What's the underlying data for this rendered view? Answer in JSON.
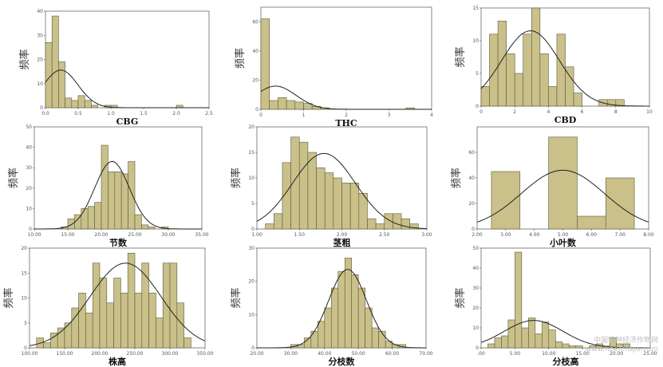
{
  "watermark": {
    "line1": "中国特种经济作物网",
    "line2": "www.fibercrops.com"
  },
  "chart_data": [
    {
      "type": "bar",
      "xlabel": "CBG",
      "ylabel": "频率",
      "xlim": [
        0,
        2.5
      ],
      "ylim": [
        0,
        40
      ],
      "xticks": [
        "0.0",
        "0.5",
        "1.0",
        "1.5",
        "2.0",
        "2.5"
      ],
      "xtick_values": [
        0,
        0.5,
        1,
        1.5,
        2,
        2.5
      ],
      "yticks": [
        0,
        10,
        20,
        30,
        40
      ],
      "bin_width": 0.1,
      "bin_starts": [
        0,
        0.1,
        0.2,
        0.3,
        0.4,
        0.5,
        0.6,
        0.7,
        0.8,
        0.9,
        1.0,
        1.1,
        1.2,
        1.3,
        1.4,
        1.5,
        1.6,
        1.7,
        1.8,
        1.9,
        2.0
      ],
      "values": [
        27,
        38,
        19,
        4,
        3,
        5,
        3,
        1,
        0,
        1,
        1,
        0,
        0,
        0,
        0,
        0,
        0,
        0,
        0,
        0,
        1
      ],
      "normal_curve": true
    },
    {
      "type": "bar",
      "xlabel": "THC",
      "ylabel": "频率",
      "xlim": [
        0,
        4
      ],
      "ylim": [
        0,
        70
      ],
      "xticks": [
        "0",
        "1",
        "2",
        "3",
        "4"
      ],
      "xtick_values": [
        0,
        1,
        2,
        3,
        4
      ],
      "yticks": [
        0,
        20,
        40,
        60
      ],
      "bin_width": 0.2,
      "bin_starts": [
        0,
        0.2,
        0.4,
        0.6,
        0.8,
        1.0,
        1.2,
        1.4,
        1.6,
        1.8,
        2.0,
        2.2,
        2.4,
        2.6,
        2.8,
        3.0,
        3.2,
        3.4
      ],
      "values": [
        62,
        6,
        8,
        6,
        5,
        4,
        2,
        1,
        0,
        0,
        0,
        0,
        0,
        0,
        0,
        0,
        0,
        1
      ],
      "normal_curve": true
    },
    {
      "type": "bar",
      "xlabel": "CBD",
      "ylabel": "频率",
      "xlim": [
        0,
        10
      ],
      "ylim": [
        0,
        15
      ],
      "xticks": [
        "0",
        "2",
        "4",
        "6",
        "8",
        "10"
      ],
      "xtick_values": [
        0,
        2,
        4,
        6,
        8,
        10
      ],
      "yticks": [
        0,
        5,
        10,
        15
      ],
      "bin_width": 0.5,
      "bin_starts": [
        0,
        0.5,
        1.0,
        1.5,
        2.0,
        2.5,
        3.0,
        3.5,
        4.0,
        4.5,
        5.0,
        5.5,
        6.0,
        6.5,
        7.0,
        7.5,
        8.0
      ],
      "values": [
        3,
        11,
        13,
        8,
        5,
        11,
        15,
        8,
        3,
        11,
        6,
        2,
        0,
        0,
        1,
        1,
        1
      ],
      "normal_curve": true
    },
    {
      "type": "bar",
      "xlabel": "节数",
      "ylabel": "频率",
      "xlim": [
        10,
        35
      ],
      "ylim": [
        0,
        50
      ],
      "xticks": [
        "10.00",
        "15.00",
        "20.00",
        "25.00",
        "30.00",
        "35.00"
      ],
      "xtick_values": [
        10,
        15,
        20,
        25,
        30,
        35
      ],
      "yticks": [
        0,
        10,
        20,
        30,
        40,
        50
      ],
      "bin_width": 1,
      "bin_starts": [
        14,
        15,
        16,
        17,
        18,
        19,
        20,
        21,
        22,
        23,
        24,
        25,
        26,
        27,
        28,
        29
      ],
      "values": [
        1,
        5,
        7,
        10,
        11,
        13,
        41,
        28,
        28,
        27,
        33,
        7,
        2,
        1,
        0,
        1
      ],
      "normal_curve": true
    },
    {
      "type": "bar",
      "xlabel": "茎粗",
      "ylabel": "频率",
      "xlim": [
        1.0,
        3.0
      ],
      "ylim": [
        0,
        20
      ],
      "xticks": [
        "1.00",
        "1.50",
        "2.00",
        "2.50",
        "3.00"
      ],
      "xtick_values": [
        1,
        1.5,
        2,
        2.5,
        3
      ],
      "yticks": [
        0,
        5,
        10,
        15,
        20
      ],
      "bin_width": 0.1,
      "bin_starts": [
        1.1,
        1.2,
        1.3,
        1.4,
        1.5,
        1.6,
        1.7,
        1.8,
        1.9,
        2.0,
        2.1,
        2.2,
        2.3,
        2.4,
        2.5,
        2.6,
        2.7,
        2.8
      ],
      "values": [
        1,
        3,
        13,
        18,
        17,
        15,
        12,
        11,
        10,
        9,
        9,
        7,
        2,
        1,
        3,
        3,
        2,
        1
      ],
      "normal_curve": true
    },
    {
      "type": "bar",
      "xlabel": "小叶数",
      "ylabel": "频率",
      "xlim": [
        2,
        8
      ],
      "ylim": [
        0,
        80
      ],
      "xticks": [
        "2.00",
        "3.00",
        "4.00",
        "5.00",
        "6.00",
        "7.00",
        "8.00"
      ],
      "xtick_values": [
        2,
        3,
        4,
        5,
        6,
        7,
        8
      ],
      "yticks": [
        0,
        20,
        40,
        60
      ],
      "bin_width": 1,
      "bin_starts": [
        2.5,
        3.5,
        4.5,
        5.5,
        6.5
      ],
      "values": [
        45,
        0,
        72,
        10,
        40
      ],
      "normal_curve": true
    },
    {
      "type": "bar",
      "xlabel": "株高",
      "ylabel": "频率",
      "xlim": [
        100,
        350
      ],
      "ylim": [
        0,
        20
      ],
      "xticks": [
        "100.00",
        "150.00",
        "200.00",
        "250.00",
        "300.00",
        "350.00"
      ],
      "xtick_values": [
        100,
        150,
        200,
        250,
        300,
        350
      ],
      "yticks": [
        0,
        5,
        10,
        15,
        20
      ],
      "bin_width": 10,
      "bin_starts": [
        110,
        120,
        130,
        140,
        150,
        160,
        170,
        180,
        190,
        200,
        210,
        220,
        230,
        240,
        250,
        260,
        270,
        280,
        290,
        300,
        310,
        320
      ],
      "values": [
        2,
        1,
        3,
        4,
        5,
        8,
        11,
        7,
        17,
        14,
        9,
        14,
        11,
        19,
        11,
        17,
        11,
        6,
        17,
        17,
        9,
        2
      ],
      "normal_curve": true
    },
    {
      "type": "bar",
      "xlabel": "分枝数",
      "ylabel": "频率",
      "xlim": [
        20,
        70
      ],
      "ylim": [
        0,
        30
      ],
      "xticks": [
        "20.00",
        "30.00",
        "40.00",
        "50.00",
        "60.00",
        "70.00"
      ],
      "xtick_values": [
        20,
        30,
        40,
        50,
        60,
        70
      ],
      "yticks": [
        0,
        10,
        20,
        30
      ],
      "bin_width": 2,
      "bin_starts": [
        30,
        32,
        34,
        36,
        38,
        40,
        42,
        44,
        46,
        48,
        50,
        52,
        54,
        56,
        58,
        60,
        62
      ],
      "values": [
        1,
        1,
        3,
        5,
        8,
        12,
        18,
        23,
        27,
        22,
        18,
        12,
        6,
        5,
        2,
        1,
        1
      ],
      "normal_curve": true
    },
    {
      "type": "bar",
      "xlabel": "分枝高",
      "ylabel": "频率",
      "xlim": [
        0,
        25
      ],
      "ylim": [
        0,
        50
      ],
      "xticks": [
        ".00",
        "5.00",
        "10.00",
        "15.00",
        "20.00",
        "25.00"
      ],
      "xtick_values": [
        0,
        5,
        10,
        15,
        20,
        25
      ],
      "yticks": [
        0,
        10,
        20,
        30,
        40,
        50
      ],
      "bin_width": 1,
      "bin_starts": [
        1,
        2,
        3,
        4,
        5,
        6,
        7,
        8,
        9,
        10,
        11,
        12,
        13,
        14,
        15,
        16,
        17,
        18,
        19,
        20,
        21
      ],
      "values": [
        2,
        5,
        6,
        14,
        48,
        10,
        15,
        7,
        13,
        9,
        3,
        2,
        1,
        1,
        0,
        1,
        2,
        1,
        5,
        2,
        2
      ],
      "normal_curve": true
    }
  ]
}
